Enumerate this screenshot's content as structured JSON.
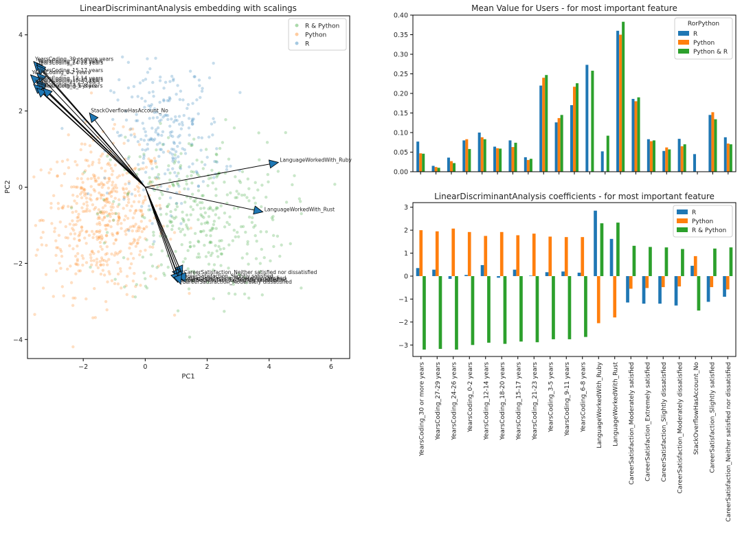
{
  "chart_data": [
    {
      "type": "scatter",
      "title": "LinearDiscriminantAnalysis embedding with scalings",
      "xlabel": "PC1",
      "ylabel": "PC2",
      "xlim": [
        -3.8,
        6.6
      ],
      "ylim": [
        -4.5,
        4.5
      ],
      "xticks": [
        -2,
        0,
        2,
        4,
        6
      ],
      "yticks": [
        -4,
        -2,
        0,
        2,
        4
      ],
      "legend": {
        "position": "top-right",
        "entries": [
          {
            "name": "R & Python",
            "color": "#2ca02c"
          },
          {
            "name": "Python",
            "color": "#ff7f0e"
          },
          {
            "name": "R",
            "color": "#1f77b4"
          }
        ]
      },
      "clouds": [
        {
          "name": "Python",
          "color": "#ff7f0e",
          "center": [
            -1.3,
            -0.8
          ],
          "spread": [
            1.0,
            1.0
          ]
        },
        {
          "name": "R & Python",
          "color": "#2ca02c",
          "center": [
            1.7,
            -0.8
          ],
          "spread": [
            1.4,
            1.1
          ]
        },
        {
          "name": "R",
          "color": "#1f77b4",
          "center": [
            0.7,
            1.4
          ],
          "spread": [
            0.9,
            0.9
          ]
        }
      ],
      "arrows": [
        {
          "label": "YearsCoding_30 or more years",
          "x": -3.6,
          "y": 3.3
        },
        {
          "label": "YearsCoding_27-29 years",
          "x": -3.5,
          "y": 3.25
        },
        {
          "label": "YearsCoding_24-26 years",
          "x": -3.5,
          "y": 3.2
        },
        {
          "label": "YearsCoding_15-17 years",
          "x": -3.5,
          "y": 3.0
        },
        {
          "label": "YearsCoding_0-2 years",
          "x": -3.7,
          "y": 2.95
        },
        {
          "label": "YearsCoding_12-14 years",
          "x": -3.5,
          "y": 2.8
        },
        {
          "label": "YearsCoding_18-20 years",
          "x": -3.5,
          "y": 2.75
        },
        {
          "label": "YearsCoding_21-23 years",
          "x": -3.6,
          "y": 2.7
        },
        {
          "label": "YearsCoding_3-5 years",
          "x": -3.5,
          "y": 2.6
        },
        {
          "label": "YearsCoding_6-8 years",
          "x": -3.3,
          "y": 2.6
        },
        {
          "label": "StackOverflowHasAccount_No",
          "x": -1.8,
          "y": 1.95
        },
        {
          "label": "LanguageWorkedWith_Ruby",
          "x": 4.3,
          "y": 0.65
        },
        {
          "label": "LanguageWorkedWith_Rust",
          "x": 3.8,
          "y": -0.65
        },
        {
          "label": "CareerSatisfaction_Neither satisfied nor dissatisfied",
          "x": 1.2,
          "y": -2.3
        },
        {
          "label": "CareerSatisfaction_Slightly satisfied",
          "x": 1.1,
          "y": -2.4
        },
        {
          "label": "CareerSatisfaction_Moderately satisfied",
          "x": 1.2,
          "y": -2.45
        },
        {
          "label": "CareerSatisfaction_Extremely satisfied",
          "x": 1.05,
          "y": -2.5
        },
        {
          "label": "CareerSatisfaction_Slightly dissatisfied",
          "x": 1.3,
          "y": -2.5
        },
        {
          "label": "CareerSatisfaction_Moderately dissatisfied",
          "x": 1.15,
          "y": -2.55
        }
      ]
    },
    {
      "type": "bar",
      "title": "Mean Value for Users - for most important feature",
      "ylim": [
        0,
        0.4
      ],
      "yticks": [
        0.0,
        0.05,
        0.1,
        0.15,
        0.2,
        0.25,
        0.3,
        0.35,
        0.4
      ],
      "legend": {
        "title": "RorPython",
        "position": "top-right"
      },
      "series": [
        {
          "name": "R",
          "color": "#1f77b4",
          "values": [
            0.077,
            0.015,
            0.036,
            0.08,
            0.1,
            0.064,
            0.08,
            0.037,
            0.22,
            0.126,
            0.17,
            0.273,
            0.052,
            0.36,
            0.186,
            0.083,
            0.053,
            0.084,
            0.045,
            0.145,
            0.088
          ]
        },
        {
          "name": "Python",
          "color": "#ff7f0e",
          "values": [
            0.047,
            0.012,
            0.027,
            0.083,
            0.088,
            0.06,
            0.063,
            0.03,
            0.24,
            0.137,
            0.217,
            0.0,
            0.0,
            0.35,
            0.18,
            0.078,
            0.062,
            0.065,
            0.0,
            0.152,
            0.072
          ]
        },
        {
          "name": "Python & R",
          "color": "#2ca02c",
          "values": [
            0.046,
            0.01,
            0.022,
            0.058,
            0.083,
            0.059,
            0.074,
            0.033,
            0.247,
            0.145,
            0.226,
            0.258,
            0.092,
            0.383,
            0.19,
            0.08,
            0.057,
            0.07,
            0.0,
            0.134,
            0.07
          ]
        }
      ]
    },
    {
      "type": "bar",
      "title": "LinearDiscriminantAnalysis coefficients - for most important feature",
      "ylim": [
        -3.5,
        3.2
      ],
      "yticks": [
        -3,
        -2,
        -1,
        0,
        1,
        2,
        3
      ],
      "legend": {
        "position": "top-right"
      },
      "categories": [
        "YearsCoding_30 or more years",
        "YearsCoding_27-29 years",
        "YearsCoding_24-26 years",
        "YearsCoding_0-2 years",
        "YearsCoding_12-14 years",
        "YearsCoding_18-20 years",
        "YearsCoding_15-17 years",
        "YearsCoding_21-23 years",
        "YearsCoding_3-5 years",
        "YearsCoding_9-11 years",
        "YearsCoding_6-8 years",
        "LanguageWorkedWith_Ruby",
        "LanguageWorkedWith_Rust",
        "CareerSatisfaction_Moderately satisfied",
        "CareerSatisfaction_Extremely satisfied",
        "CareerSatisfaction_Slightly dissatisfied",
        "CareerSatisfaction_Moderately dissatisfied",
        "StackOverflowHasAccount_No",
        "CareerSatisfaction_Slightly satisfied",
        "CareerSatisfaction_Neither satisfied nor dissatisfied"
      ],
      "series": [
        {
          "name": "R",
          "color": "#1f77b4",
          "values": [
            0.35,
            0.28,
            -0.12,
            0.05,
            0.48,
            -0.07,
            0.28,
            0.02,
            0.17,
            0.2,
            0.15,
            2.85,
            1.62,
            -1.15,
            -1.2,
            -1.2,
            -1.28,
            0.45,
            -1.12,
            -0.9
          ]
        },
        {
          "name": "Python",
          "color": "#ff7f0e",
          "values": [
            2.0,
            1.95,
            2.07,
            1.92,
            1.75,
            1.92,
            1.78,
            1.85,
            1.72,
            1.7,
            1.7,
            -2.05,
            -1.8,
            -0.55,
            -0.52,
            -0.48,
            -0.45,
            0.87,
            -0.48,
            -0.58
          ]
        },
        {
          "name": "R & Python",
          "color": "#2ca02c",
          "values": [
            -3.2,
            -3.17,
            -3.2,
            -3.0,
            -2.9,
            -2.95,
            -2.85,
            -2.88,
            -2.75,
            -2.75,
            -2.65,
            2.3,
            2.33,
            1.32,
            1.27,
            1.25,
            1.18,
            -1.5,
            1.2,
            1.25
          ]
        }
      ]
    }
  ]
}
